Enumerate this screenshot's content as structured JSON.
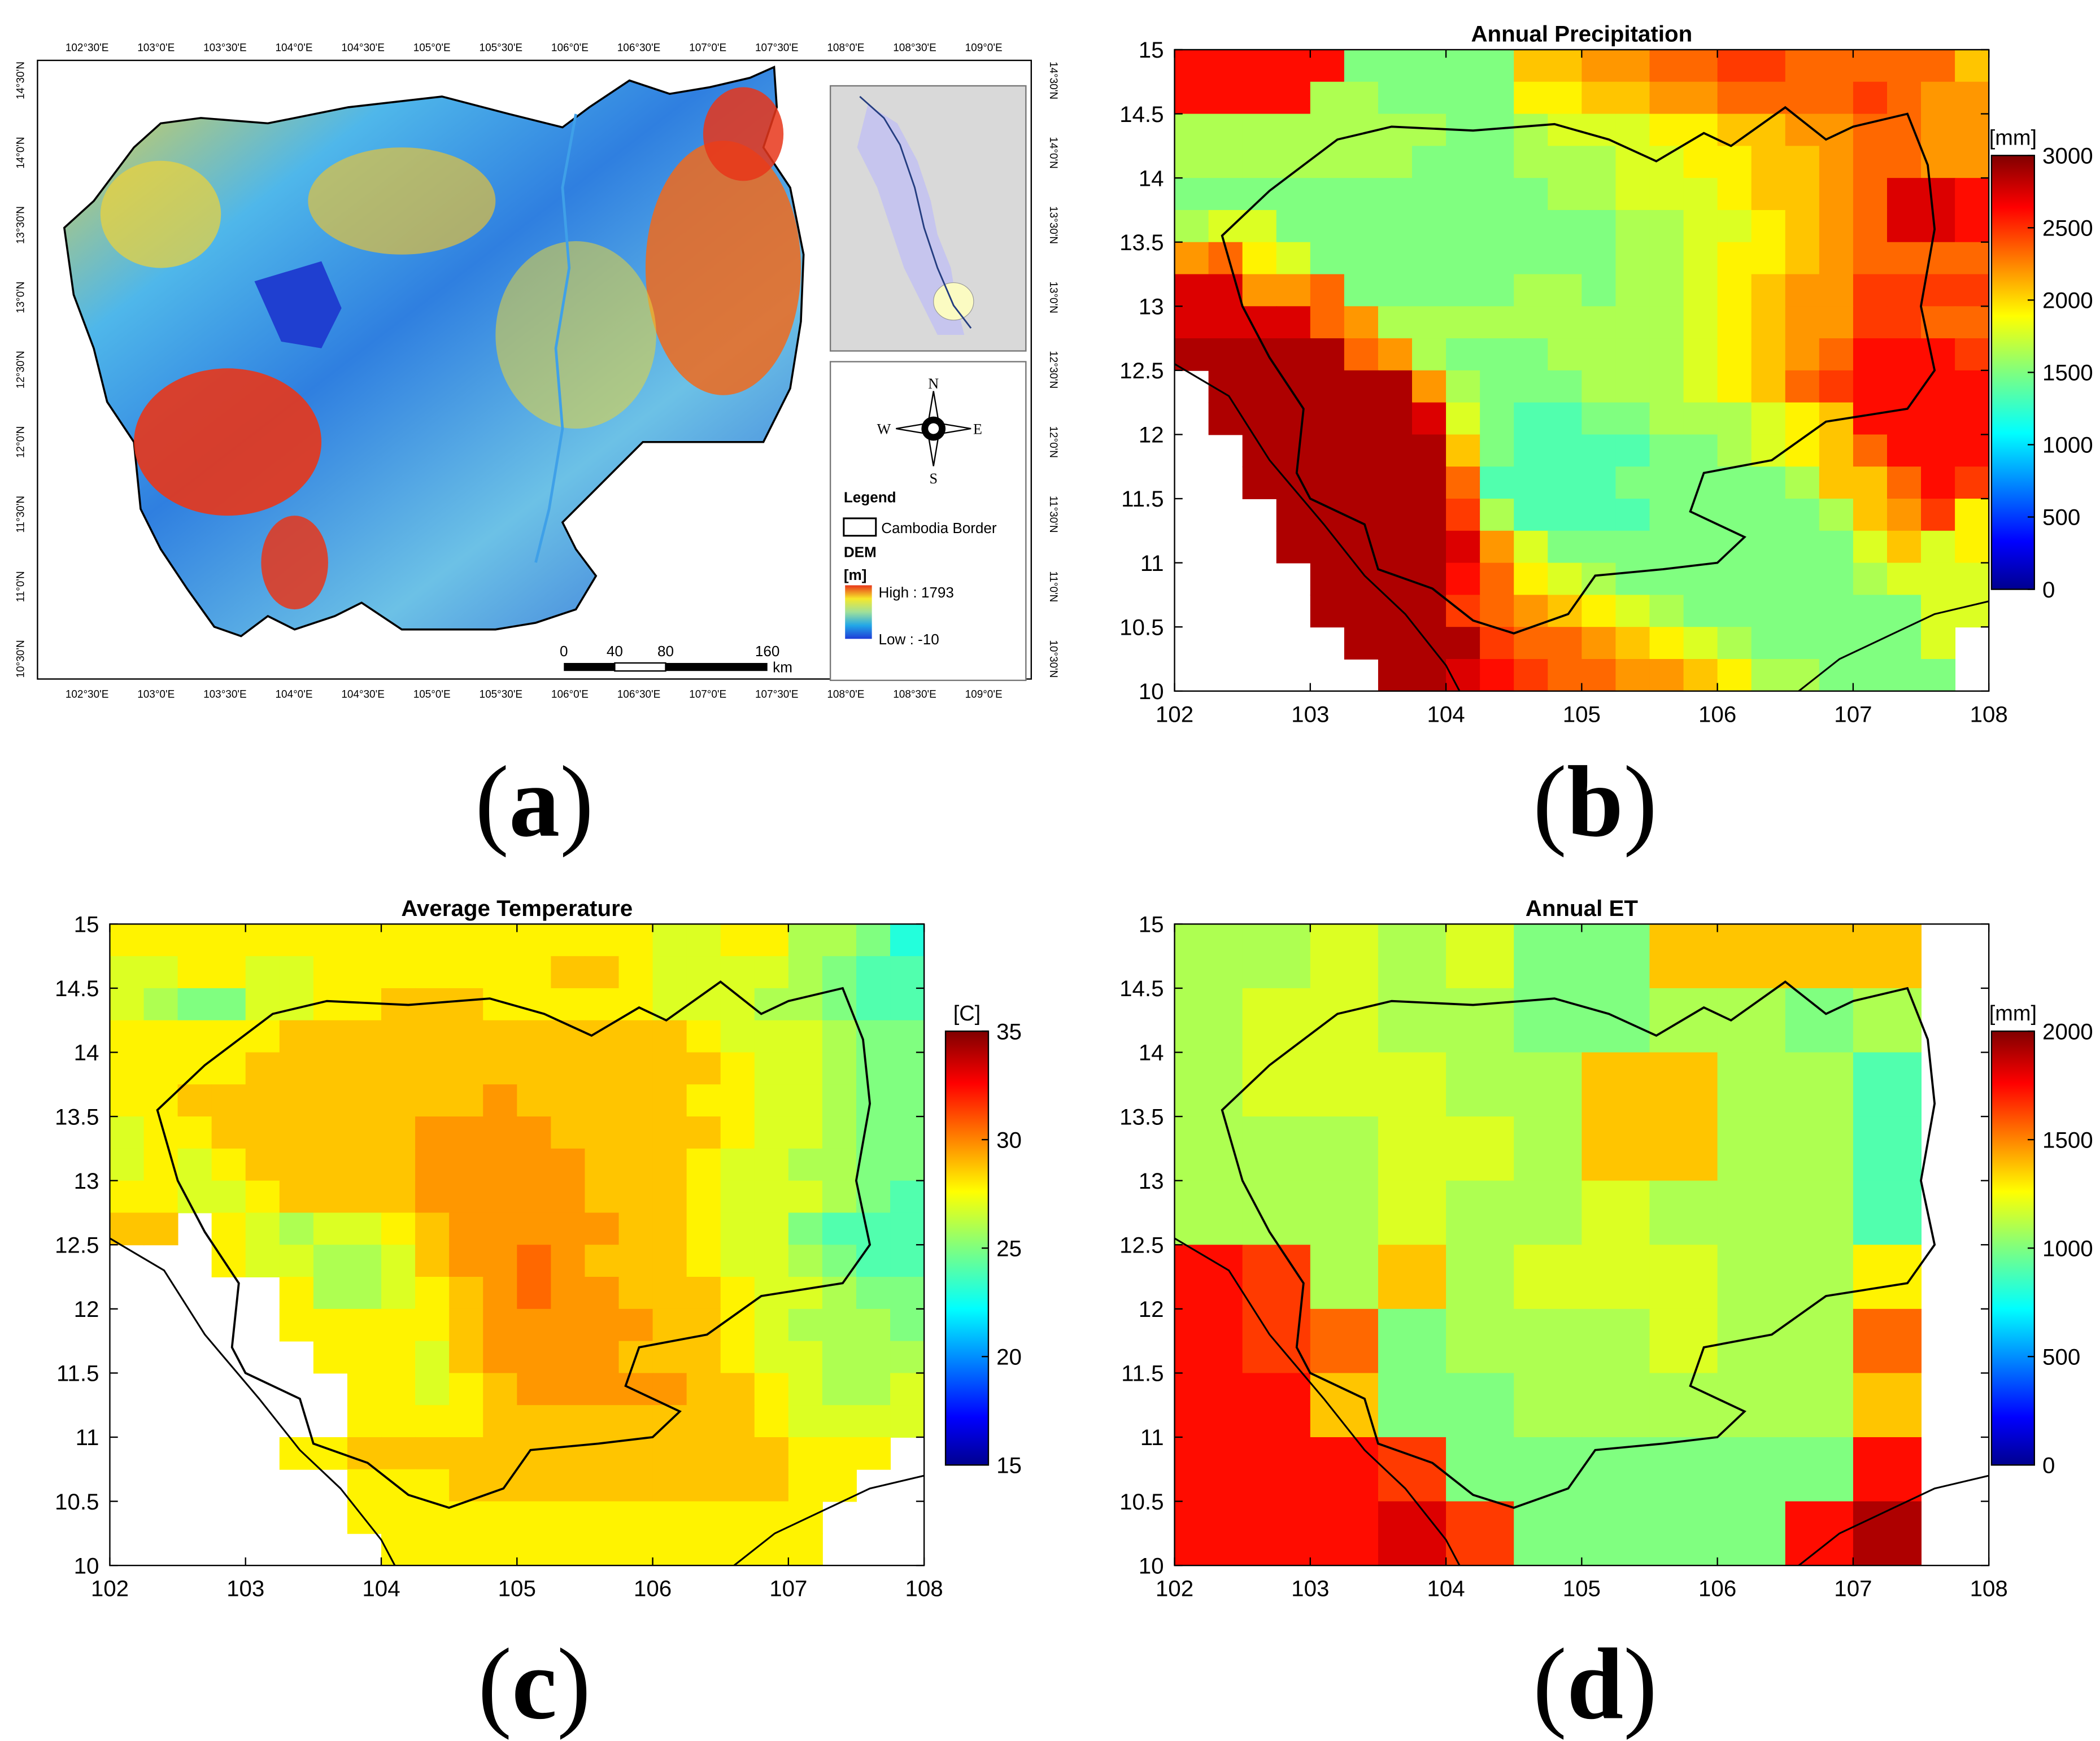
{
  "panel_a": {
    "letter": "a",
    "lon_ticks": [
      "102°30'E",
      "103°0'E",
      "103°30'E",
      "104°0'E",
      "104°30'E",
      "105°0'E",
      "105°30'E",
      "106°0'E",
      "106°30'E",
      "107°0'E",
      "107°30'E",
      "108°0'E",
      "108°30'E",
      "109°0'E"
    ],
    "lat_ticks": [
      "14°30'N",
      "14°0'N",
      "13°30'N",
      "13°0'N",
      "12°30'N",
      "12°0'N",
      "11°30'N",
      "11°0'N",
      "10°30'N"
    ],
    "compass": {
      "n": "N",
      "s": "S",
      "e": "E",
      "w": "W"
    },
    "legend": {
      "title": "Legend",
      "border_label": "Cambodia Border",
      "dem_label": "DEM",
      "unit": "[m]",
      "high_label": "High : 1793",
      "low_label": "Low : -10"
    },
    "scale_bar": {
      "labels": [
        "0",
        "40",
        "80",
        "160"
      ],
      "unit": "km"
    }
  },
  "panel_b": {
    "letter": "b"
  },
  "panel_c": {
    "letter": "c"
  },
  "panel_d": {
    "letter": "d"
  },
  "chart_data": [
    {
      "panel": "b",
      "type": "heatmap",
      "title": "Annual Precipitation",
      "xlabel": "",
      "ylabel": "",
      "xlim": [
        102,
        108
      ],
      "ylim": [
        10,
        15
      ],
      "x_ticks": [
        "102",
        "103",
        "104",
        "105",
        "106",
        "107",
        "108"
      ],
      "y_ticks": [
        "10",
        "10.5",
        "11",
        "11.5",
        "12",
        "12.5",
        "13",
        "13.5",
        "14",
        "14.5",
        "15"
      ],
      "colorbar": {
        "unit": "[mm]",
        "min": 0,
        "max": 3000,
        "ticks": [
          "0",
          "500",
          "1000",
          "1500",
          "2000",
          "2500",
          "3000"
        ],
        "colormap": "jet"
      },
      "cell_size_deg": 0.25,
      "cols": 24,
      "rows": 20,
      "rows_north_to_south": [
        "TTTTTLLLLLPPQQRRSSRRRRRP",
        "TTTTMMLLLLOOPPQQRRRRSRQQ",
        "MMMMMMMMLLMNNNOOPPQQRRQQ",
        "MMMMMMMLLLMMMNNOOPPQRRQQ",
        "LLLLLLLLLLLMMNNNOPPQRUUT",
        "MNNLLLLLLLLLLMMNNOPQRUUT",
        "QRONLLLLLLLLLMMNOOPQRRRR",
        "UUQQRLLLLLMMLMMNOPQQSSSS",
        "UUUURQMMMMMMMMMNOPQQSSRR",
        "VVVVVRQMLLLMMMMNOPQRTTTS",
        "_VVVVVVQMLLLMMMNOPRSTTTT",
        "_VVVVVVUNLKKLLMMMNOPTTTT",
        "__VVVVVVPLKKKKLLMNOPRTTT",
        "__VVVVVVRKKKKLLLLLMPPRTS",
        "___VVVVVSMKKKKLLLLLMPQSO",
        "___VVVVVUQNLLLLLLLLLNPNO",
        "____VVVVTRONMLLLLLLLMNNN",
        "____VVVVSRQPONMLLLLLLLNN",
        "_____VVVVSRRQPONMLLLLLN_",
        "______VVUTSRRQQPOMMLLLL_"
      ]
    },
    {
      "panel": "c",
      "type": "heatmap",
      "title": "Average Temperature",
      "xlabel": "",
      "ylabel": "",
      "xlim": [
        102,
        108
      ],
      "ylim": [
        10,
        15
      ],
      "x_ticks": [
        "102",
        "103",
        "104",
        "105",
        "106",
        "107",
        "108"
      ],
      "y_ticks": [
        "10",
        "10.5",
        "11",
        "11.5",
        "12",
        "12.5",
        "13",
        "13.5",
        "14",
        "14.5",
        "15"
      ],
      "colorbar": {
        "unit": "[C]",
        "min": 15,
        "max": 35,
        "ticks": [
          "15",
          "20",
          "25",
          "30",
          "35"
        ],
        "colormap": "jet"
      },
      "cell_size_deg": 0.25,
      "cols": 24,
      "rows": 20,
      "rows_north_to_south": [
        "OOOOOOOOOOOOOOOONNOOMMLJ",
        "NNOONNOOOOOOOPPONNNNMLKK",
        "NMLLNNOOPPPOOOOONNNMMLKK",
        "OOOOOPPPPPPPPPPPPONNNMLL",
        "OOOOPPPPPPPPPPPPPPONNMLL",
        "OOPPPPPPPPPQPPPPPOONNMLL",
        "NOOPPPPPPQQQQPPPPPONNMLL",
        "NONOPPPPPQQQQQPPPONNMMLL",
        "OONNOPPPPQQQQQPPPONNNMLK",
        "PP_ONMNNOPQQQQQPPONNLKKK",
        "___ONNMMNPQQRQPPPONNMLKK",
        "_____OMMNOPQRQQPPPONNMLL",
        "_____OOOOOPQQQQQPPONMMML",
        "______OOONPQQQQPPPONNMMM",
        "_______OONOPQQQQQPPONMMN",
        "_______OOOOPPPPPPPPONNNN",
        "_____OOPPPPPPPPPPPPPOOO_",
        "_______OOOPPPPPPPPPPOO__",
        "_______OOOOOOOOOOOOOO___",
        "________OOOOOOOOOOOOO___"
      ]
    },
    {
      "panel": "d",
      "type": "heatmap",
      "title": "Annual ET",
      "xlabel": "",
      "ylabel": "",
      "xlim": [
        102,
        108
      ],
      "ylim": [
        10,
        15
      ],
      "x_ticks": [
        "102",
        "103",
        "104",
        "105",
        "106",
        "107",
        "108"
      ],
      "y_ticks": [
        "10",
        "10.5",
        "11",
        "11.5",
        "12",
        "12.5",
        "13",
        "13.5",
        "14",
        "14.5",
        "15"
      ],
      "colorbar": {
        "unit": "[mm]",
        "min": 0,
        "max": 2000,
        "ticks": [
          "0",
          "500",
          "1000",
          "1500",
          "2000"
        ],
        "colormap": "jet"
      },
      "cell_size_deg": 0.5,
      "cols": 11,
      "rows": 10,
      "rows_north_to_south": [
        "MMNMNLLPPPP",
        "MNNMMLLMMLM",
        "MNNNMMPPMMK",
        "MMMNNMPPMMK",
        "MMMNMMNMMMK",
        "TSMPMNNNMMO",
        "TSRLMMMNMMR",
        "TTPLLMMMMMP",
        "TTTSLLLLLLT",
        "TTTUSLLLLTV"
      ]
    }
  ]
}
